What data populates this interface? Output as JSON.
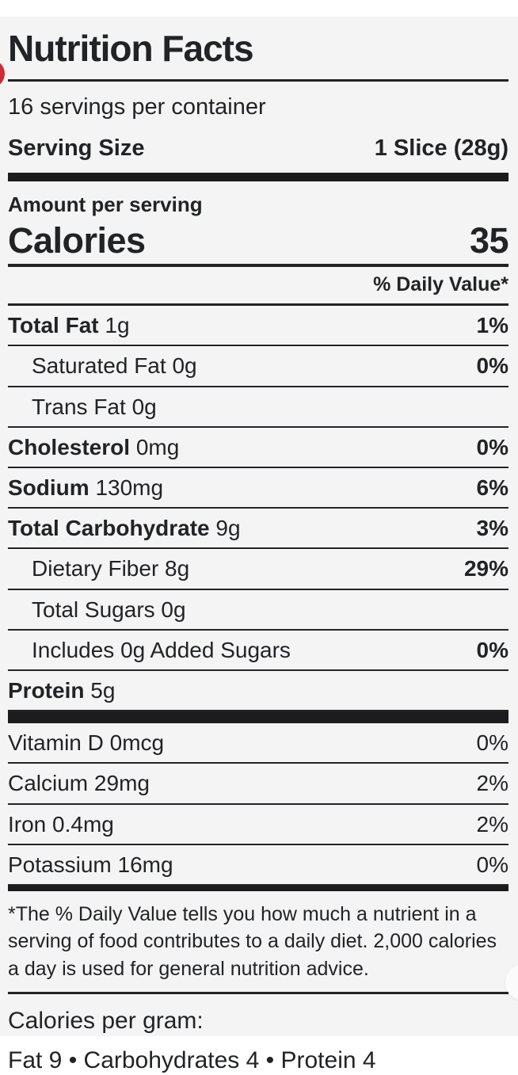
{
  "colors": {
    "background": "#f4f4f5",
    "top_strip": "#ffffff",
    "text": "#222326",
    "rule": "#232427",
    "thick_bar": "#1c1c1f",
    "red_dot": "#cf2a39"
  },
  "label": {
    "title": "Nutrition Facts",
    "servings_per_container": "16 servings per container",
    "serving_size_label": "Serving Size",
    "serving_size_value": "1 Slice (28g)",
    "amount_per_serving": "Amount per serving",
    "calories_label": "Calories",
    "calories_value": "35",
    "daily_value_header": "% Daily Value*",
    "nutrients": [
      {
        "name": "Total Fat",
        "amount": "1g",
        "percent": "1%"
      },
      {
        "name": "Saturated Fat",
        "amount": "0g",
        "percent": "0%"
      },
      {
        "name": "Trans Fat",
        "amount": "0g",
        "percent": ""
      },
      {
        "name": "Cholesterol",
        "amount": "0mg",
        "percent": "0%"
      },
      {
        "name": "Sodium",
        "amount": "130mg",
        "percent": "6%"
      },
      {
        "name": "Total Carbohydrate",
        "amount": "9g",
        "percent": "3%"
      },
      {
        "name": "Dietary Fiber",
        "amount": "8g",
        "percent": "29%"
      },
      {
        "name": "Total Sugars",
        "amount": "0g",
        "percent": ""
      },
      {
        "name": "Includes 0g Added Sugars",
        "amount": "",
        "percent": "0%"
      },
      {
        "name": "Protein",
        "amount": "5g",
        "percent": ""
      }
    ],
    "vitamins": [
      {
        "name": "Vitamin D",
        "amount": "0mcg",
        "percent": "0%"
      },
      {
        "name": "Calcium",
        "amount": "29mg",
        "percent": "2%"
      },
      {
        "name": "Iron",
        "amount": "0.4mg",
        "percent": "2%"
      },
      {
        "name": "Potassium",
        "amount": "16mg",
        "percent": "0%"
      }
    ],
    "footnote": "*The % Daily Value tells you how much a nutrient in a serving of food contributes to a daily diet. 2,000 calories a day is used for general nutrition advice.",
    "calories_per_gram_label": "Calories per gram:",
    "calories_per_gram_values": "Fat 9 • Carbohydrates 4 • Protein 4"
  }
}
